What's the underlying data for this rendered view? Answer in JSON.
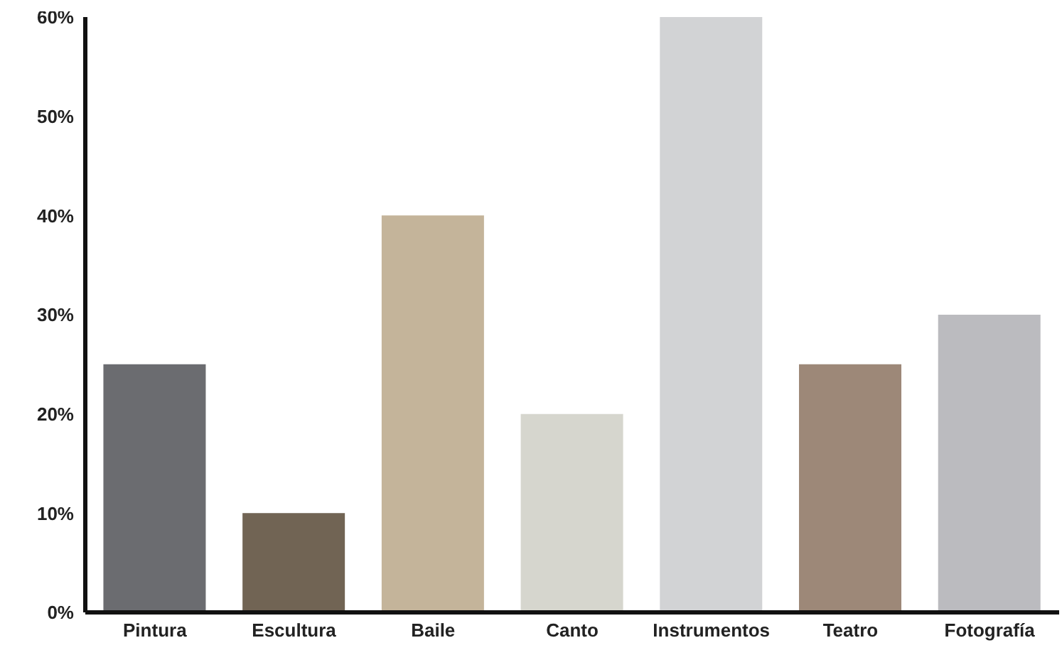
{
  "chart_data": {
    "type": "bar",
    "categories": [
      "Pintura",
      "Escultura",
      "Baile",
      "Canto",
      "Instrumentos",
      "Teatro",
      "Fotografía"
    ],
    "values": [
      25,
      10,
      40,
      20,
      60,
      25,
      30
    ],
    "colors": [
      "#6b6c70",
      "#716454",
      "#c4b49a",
      "#d6d6ce",
      "#d2d3d5",
      "#9d8878",
      "#bbbbbf"
    ],
    "ylim": [
      0,
      60
    ],
    "yticks": [
      {
        "value": 0,
        "label": "0%"
      },
      {
        "value": 10,
        "label": "10%"
      },
      {
        "value": 20,
        "label": "20%"
      },
      {
        "value": 30,
        "label": "30%"
      },
      {
        "value": 40,
        "label": "40%"
      },
      {
        "value": 50,
        "label": "50%"
      },
      {
        "value": 60,
        "label": "60%"
      }
    ],
    "grid": false,
    "legend": false
  }
}
